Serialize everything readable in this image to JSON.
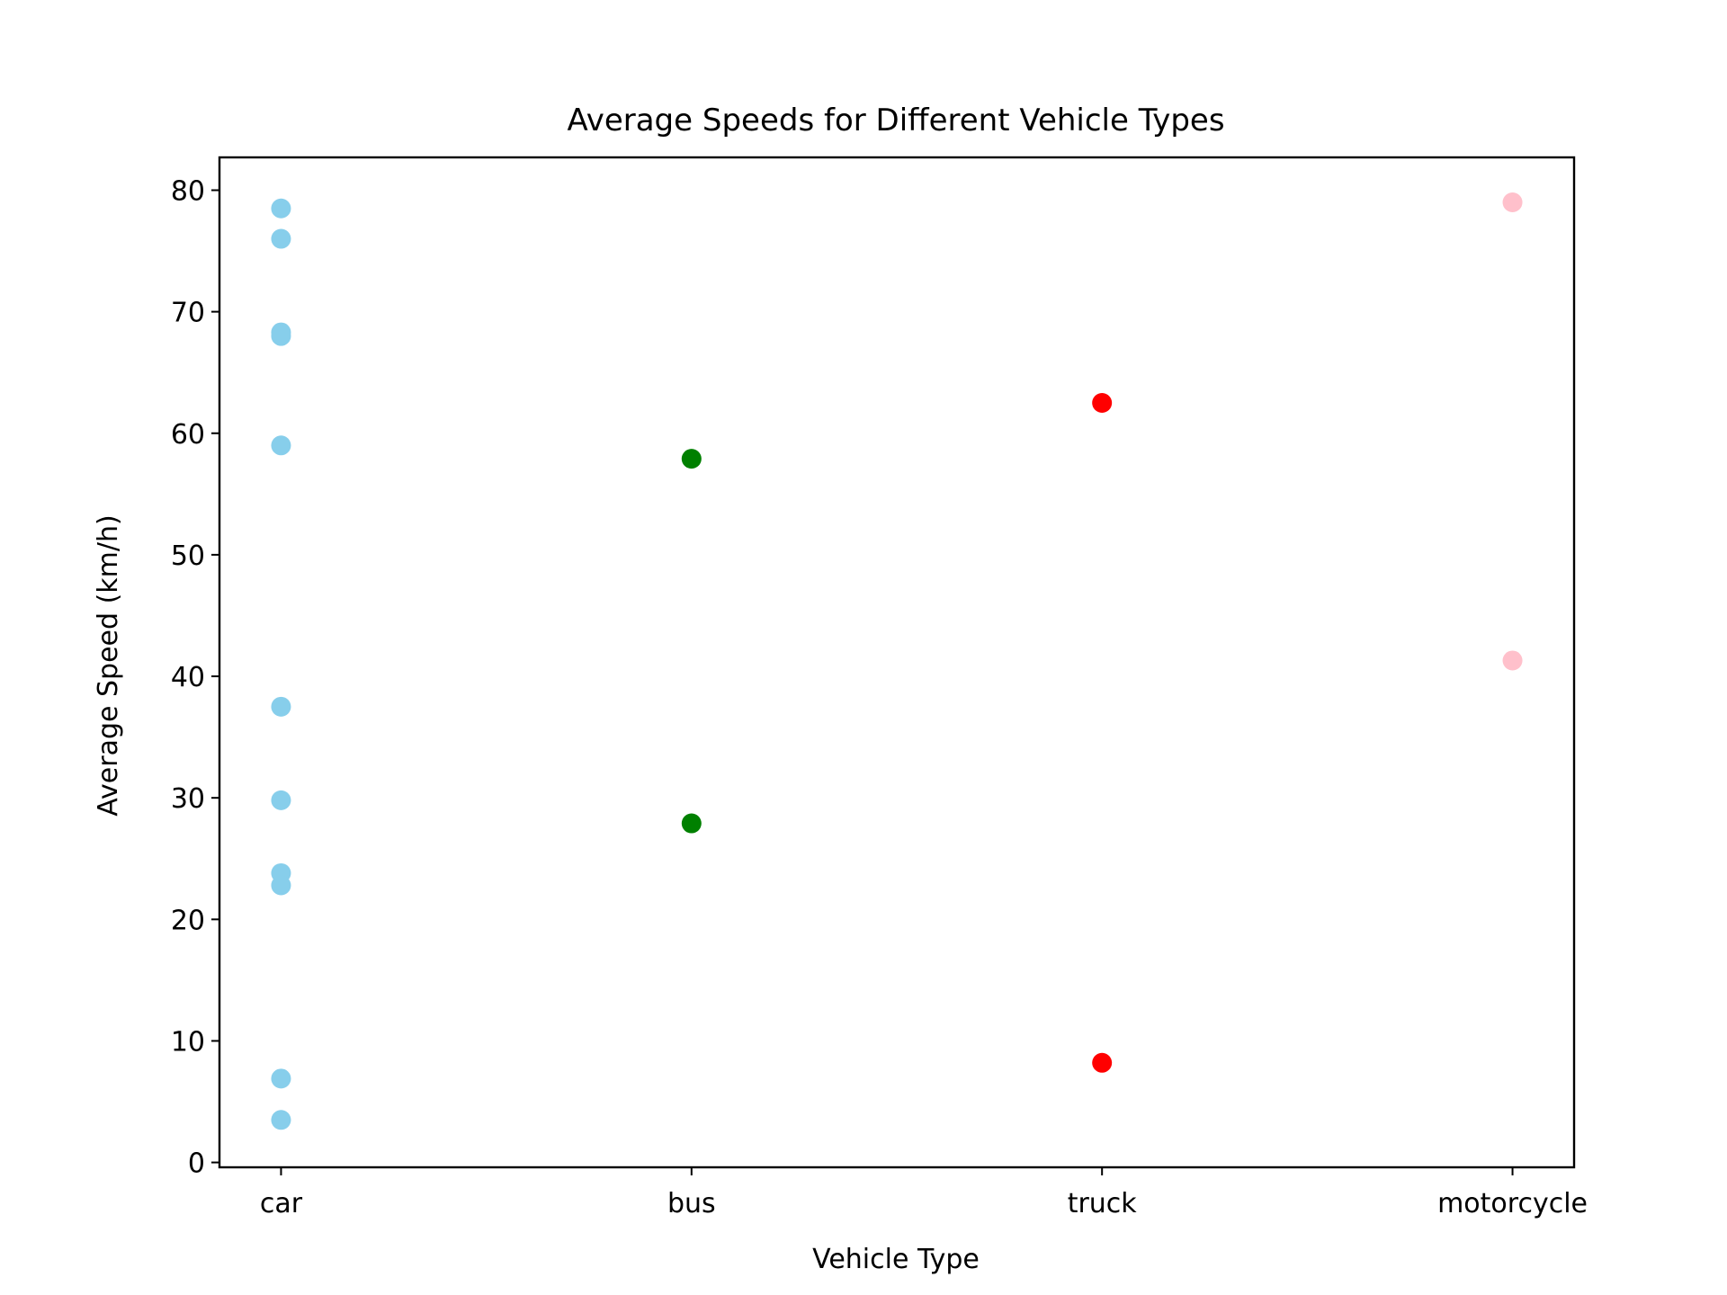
{
  "chart_data": {
    "type": "scatter",
    "title": "Average Speeds for Different Vehicle Types",
    "xlabel": "Vehicle Type",
    "ylabel": "Average Speed (km/h)",
    "categories": [
      "car",
      "bus",
      "truck",
      "motorcycle"
    ],
    "ylim": [
      -0.4,
      82.7
    ],
    "yticks": [
      0,
      10,
      20,
      30,
      40,
      50,
      60,
      70,
      80
    ],
    "grid": false,
    "legend": "none",
    "series": [
      {
        "category": "car",
        "color": "#87CEEB",
        "values": [
          78.5,
          76.0,
          68.3,
          68.0,
          59.0,
          37.5,
          29.8,
          23.8,
          22.8,
          6.9,
          3.5
        ]
      },
      {
        "category": "bus",
        "color": "#008000",
        "values": [
          57.9,
          27.9
        ]
      },
      {
        "category": "truck",
        "color": "#FF0000",
        "values": [
          62.5,
          8.2
        ]
      },
      {
        "category": "motorcycle",
        "color": "#FFC0CB",
        "values": [
          79.0,
          41.3
        ]
      }
    ]
  }
}
